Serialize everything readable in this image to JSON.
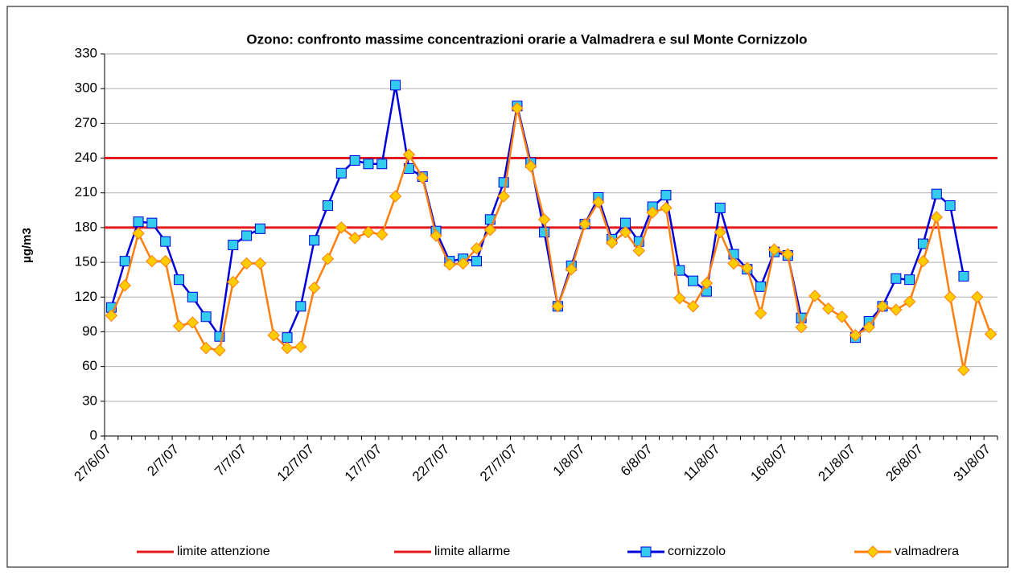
{
  "chart_data": {
    "type": "line",
    "title": "Ozono: confronto massime concentrazioni  orarie a Valmadrera e sul Monte Cornizzolo",
    "y_label": "µg/m3",
    "categories": [
      "27/6/07",
      null,
      null,
      null,
      null,
      "2/7/07",
      null,
      null,
      null,
      null,
      "7/7/07",
      null,
      null,
      null,
      null,
      "12/7/07",
      null,
      null,
      null,
      null,
      "17/7/07",
      null,
      null,
      null,
      null,
      "22/7/07",
      null,
      null,
      null,
      null,
      "27/7/07",
      null,
      null,
      null,
      null,
      "1/8/07",
      null,
      null,
      null,
      null,
      "6/8/07",
      null,
      null,
      null,
      null,
      "11/8/07",
      null,
      null,
      null,
      null,
      "16/8/07",
      null,
      null,
      null,
      null,
      "21/8/07",
      null,
      null,
      null,
      null,
      "26/8/07",
      null,
      null,
      null,
      null,
      "31/8/07"
    ],
    "ylim": [
      0,
      330
    ],
    "yticks": [
      0,
      30,
      60,
      90,
      120,
      150,
      180,
      210,
      240,
      270,
      300,
      330
    ],
    "grid": true,
    "limits": [
      {
        "name": "limite attenzione",
        "color": "#e41a1c",
        "value": 180
      },
      {
        "name": "limite allarme",
        "color": "#e41a1c",
        "value": 240
      }
    ],
    "series": [
      {
        "name": "cornizzolo",
        "color": "#0000dd",
        "marker_color": "#33ccee",
        "marker": "square",
        "values": [
          111,
          151,
          185,
          184,
          168,
          135,
          120,
          103,
          86,
          165,
          173,
          179,
          null,
          85,
          112,
          169,
          199,
          227,
          238,
          235,
          235,
          303,
          231,
          224,
          177,
          151,
          153,
          151,
          187,
          219,
          285,
          236,
          176,
          112,
          147,
          183,
          206,
          170,
          184,
          168,
          198,
          208,
          143,
          134,
          125,
          197,
          157,
          144,
          129,
          159,
          156,
          102,
          null,
          null,
          null,
          85,
          99,
          112,
          136,
          135,
          166,
          209,
          199,
          138,
          null,
          null
        ]
      },
      {
        "name": "valmadrera",
        "color": "#ff7f0e",
        "marker_color": "#ffcc00",
        "marker": "diamond",
        "values": [
          104,
          130,
          175,
          151,
          151,
          95,
          98,
          76,
          74,
          133,
          149,
          149,
          87,
          76,
          77,
          128,
          153,
          180,
          171,
          176,
          174,
          207,
          243,
          223,
          173,
          148,
          149,
          162,
          178,
          207,
          283,
          233,
          187,
          112,
          144,
          183,
          202,
          167,
          176,
          160,
          193,
          197,
          119,
          112,
          132,
          176,
          149,
          145,
          106,
          161,
          157,
          94,
          121,
          110,
          103,
          87,
          94,
          112,
          109,
          116,
          151,
          189,
          120,
          57,
          120,
          88
        ]
      }
    ]
  }
}
